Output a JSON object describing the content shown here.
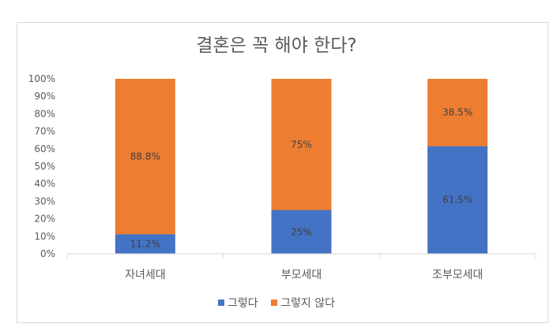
{
  "chart_data": {
    "type": "bar",
    "stacked": true,
    "title": "결혼은 꼭 해야 한다?",
    "categories": [
      "자녀세대",
      "부모세대",
      "조부모세대"
    ],
    "series": [
      {
        "name": "그렇다",
        "values": [
          11.2,
          25,
          61.5
        ],
        "labels": [
          "11.2%",
          "25%",
          "61.5%"
        ],
        "color": "#4472C4"
      },
      {
        "name": "그렇지 않다",
        "values": [
          88.8,
          75,
          38.5
        ],
        "labels": [
          "88.8%",
          "75%",
          "38.5%"
        ],
        "color": "#ED7D31"
      }
    ],
    "yticks": [
      "0%",
      "10%",
      "20%",
      "30%",
      "40%",
      "50%",
      "60%",
      "70%",
      "80%",
      "90%",
      "100%"
    ],
    "ylim": [
      0,
      100
    ],
    "grid": false,
    "legend": "bottom"
  }
}
